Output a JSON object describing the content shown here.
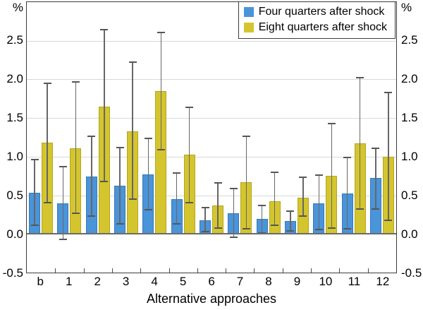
{
  "chart_data": {
    "type": "bar",
    "title": "",
    "unit": "%",
    "xlabel": "Alternative approaches",
    "categories": [
      "b",
      "1",
      "2",
      "3",
      "4",
      "5",
      "6",
      "7",
      "8",
      "9",
      "10",
      "11",
      "12"
    ],
    "ylim": [
      -0.5,
      3.0
    ],
    "ytick_labels": [
      "-0.5",
      "0.0",
      "0.5",
      "1.0",
      "1.5",
      "2.0",
      "2.5"
    ],
    "grid": true,
    "legend_position": "top-right",
    "series": [
      {
        "name": "Four quarters after shock",
        "color": "#4a94da",
        "border_color": "#3579b8",
        "values": [
          0.53,
          0.4,
          0.74,
          0.62,
          0.77,
          0.45,
          0.18,
          0.27,
          0.19,
          0.17,
          0.4,
          0.52,
          0.72
        ],
        "error_low": [
          0.1,
          -0.08,
          0.22,
          0.12,
          0.3,
          0.12,
          0.02,
          -0.05,
          0.0,
          0.03,
          0.05,
          0.06,
          0.31
        ],
        "error_high": [
          0.97,
          0.88,
          1.27,
          1.13,
          1.25,
          0.8,
          0.35,
          0.6,
          0.38,
          0.3,
          0.77,
          1.0,
          1.12
        ]
      },
      {
        "name": "Eight quarters after shock",
        "color": "#d4c52e",
        "border_color": "#b3a620",
        "values": [
          1.18,
          1.11,
          1.65,
          1.33,
          1.85,
          1.03,
          0.37,
          0.67,
          0.42,
          0.47,
          0.75,
          1.17,
          1.0
        ],
        "error_low": [
          0.4,
          0.26,
          0.67,
          0.44,
          1.08,
          0.4,
          0.07,
          0.06,
          0.1,
          0.22,
          0.07,
          0.31,
          0.17
        ],
        "error_high": [
          1.96,
          1.98,
          2.65,
          2.23,
          2.62,
          1.65,
          0.67,
          1.27,
          0.81,
          0.74,
          1.44,
          2.03,
          1.84
        ]
      }
    ],
    "error_bar_color": "#5f5f5f",
    "grid_color": "#d9d9d9",
    "frame_color": "#3c3c3c"
  }
}
